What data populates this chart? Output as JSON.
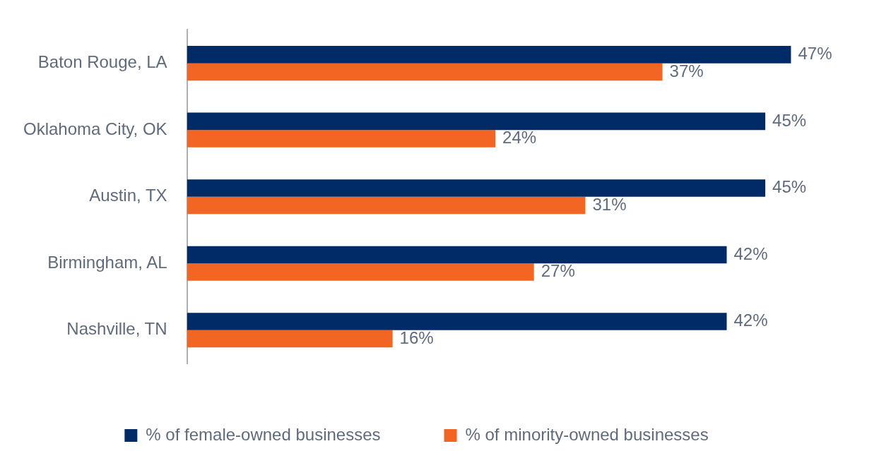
{
  "chart_data": {
    "type": "bar",
    "orientation": "horizontal",
    "categories": [
      "Baton Rouge, LA",
      "Oklahoma City, OK",
      "Austin, TX",
      "Birmingham, AL",
      "Nashville, TN"
    ],
    "series": [
      {
        "name": "% of female-owned businesses",
        "color": "#002b66",
        "values": [
          47,
          45,
          45,
          42,
          42
        ],
        "value_labels": [
          "47%",
          "45%",
          "45%",
          "42%",
          "42%"
        ]
      },
      {
        "name": "% of minority-owned businesses",
        "color": "#f26522",
        "values": [
          37,
          24,
          31,
          27,
          16
        ],
        "value_labels": [
          "37%",
          "24%",
          "31%",
          "27%",
          "16%"
        ]
      }
    ],
    "legend": "bottom"
  }
}
